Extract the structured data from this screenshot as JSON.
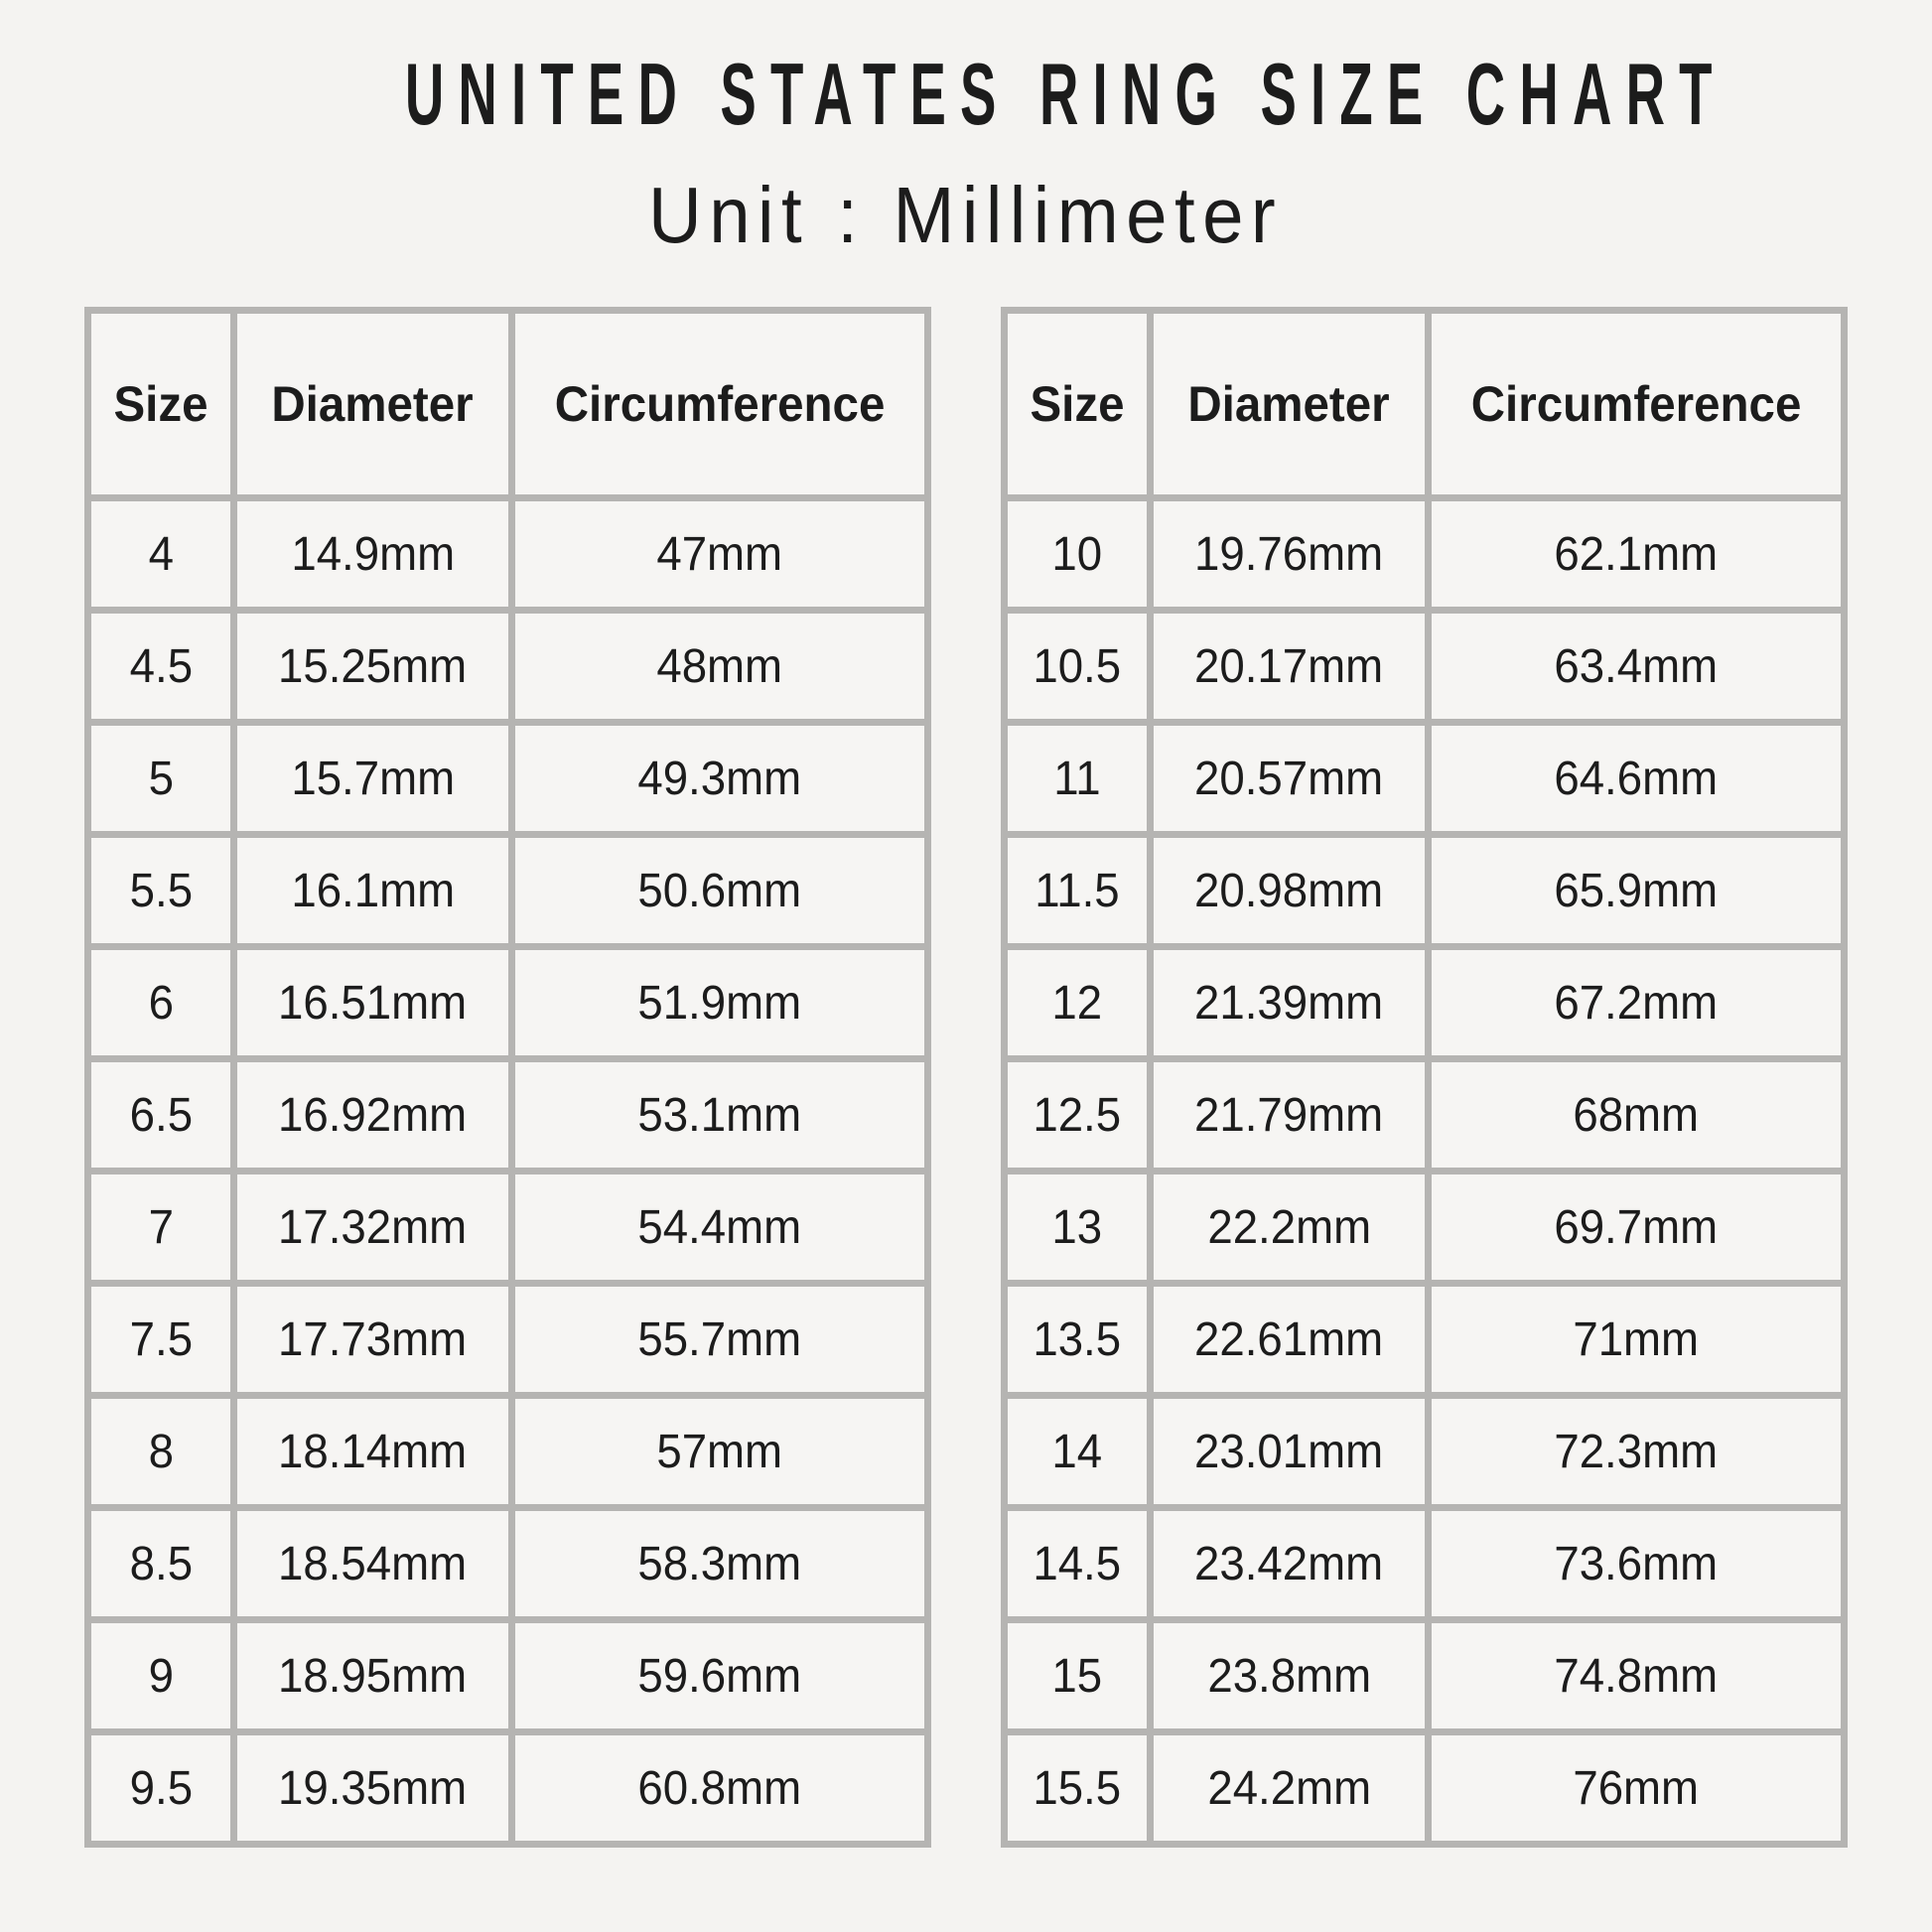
{
  "chart_data": {
    "type": "table",
    "title": "UNITED STATES RING SIZE CHART",
    "subtitle": "Unit : Millimeter",
    "columns": [
      "Size",
      "Diameter",
      "Circumference"
    ],
    "tables": [
      {
        "rows": [
          [
            "4",
            "14.9mm",
            "47mm"
          ],
          [
            "4.5",
            "15.25mm",
            "48mm"
          ],
          [
            "5",
            "15.7mm",
            "49.3mm"
          ],
          [
            "5.5",
            "16.1mm",
            "50.6mm"
          ],
          [
            "6",
            "16.51mm",
            "51.9mm"
          ],
          [
            "6.5",
            "16.92mm",
            "53.1mm"
          ],
          [
            "7",
            "17.32mm",
            "54.4mm"
          ],
          [
            "7.5",
            "17.73mm",
            "55.7mm"
          ],
          [
            "8",
            "18.14mm",
            "57mm"
          ],
          [
            "8.5",
            "18.54mm",
            "58.3mm"
          ],
          [
            "9",
            "18.95mm",
            "59.6mm"
          ],
          [
            "9.5",
            "19.35mm",
            "60.8mm"
          ]
        ]
      },
      {
        "rows": [
          [
            "10",
            "19.76mm",
            "62.1mm"
          ],
          [
            "10.5",
            "20.17mm",
            "63.4mm"
          ],
          [
            "11",
            "20.57mm",
            "64.6mm"
          ],
          [
            "11.5",
            "20.98mm",
            "65.9mm"
          ],
          [
            "12",
            "21.39mm",
            "67.2mm"
          ],
          [
            "12.5",
            "21.79mm",
            "68mm"
          ],
          [
            "13",
            "22.2mm",
            "69.7mm"
          ],
          [
            "13.5",
            "22.61mm",
            "71mm"
          ],
          [
            "14",
            "23.01mm",
            "72.3mm"
          ],
          [
            "14.5",
            "23.42mm",
            "73.6mm"
          ],
          [
            "15",
            "23.8mm",
            "74.8mm"
          ],
          [
            "15.5",
            "24.2mm",
            "76mm"
          ]
        ]
      }
    ]
  },
  "colors": {
    "page_background": "#f4f3f1",
    "cell_background": "#f6f5f3",
    "grid_line": "#b5b4b2",
    "text": "#1c1c1c"
  }
}
